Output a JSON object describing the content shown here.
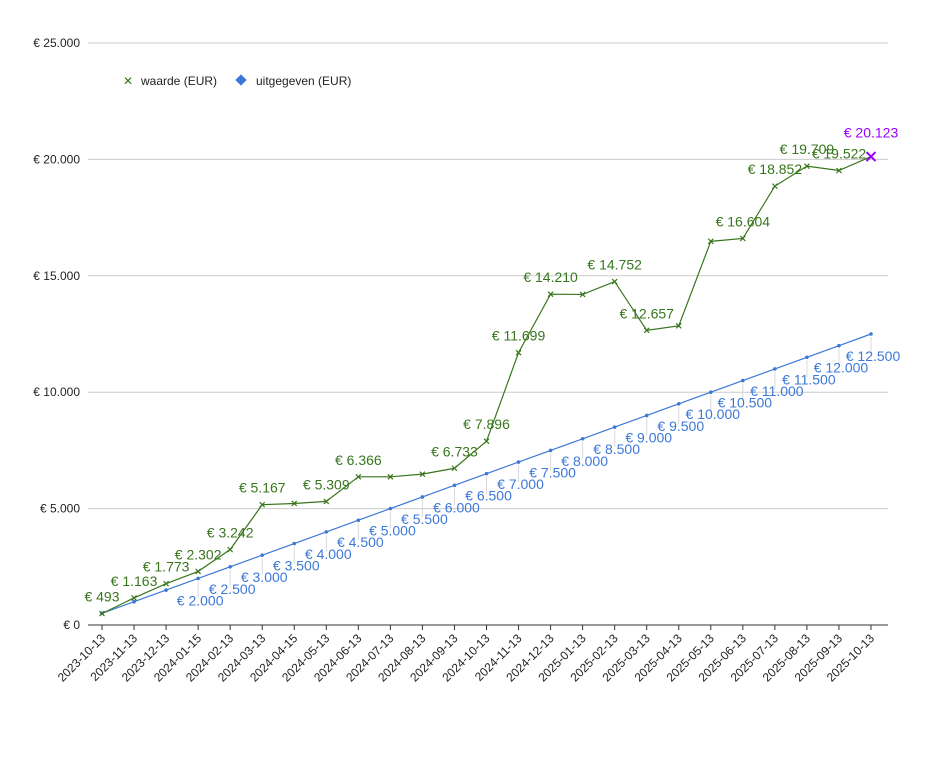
{
  "chart_data": {
    "type": "line",
    "title": "",
    "xlabel": "",
    "ylabel": "",
    "ylim": [
      0,
      25000
    ],
    "yticks": [
      "€ 0",
      "€ 5.000",
      "€ 10.000",
      "€ 15.000",
      "€ 20.000",
      "€ 25.000"
    ],
    "ytick_values": [
      0,
      5000,
      10000,
      15000,
      20000,
      25000
    ],
    "grid": true,
    "legend_position": "top-left",
    "categories": [
      "2023-10-13",
      "2023-11-13",
      "2023-12-13",
      "2024-01-15",
      "2024-02-13",
      "2024-03-13",
      "2024-04-15",
      "2024-05-13",
      "2024-06-13",
      "2024-07-13",
      "2024-08-13",
      "2024-09-13",
      "2024-10-13",
      "2024-11-13",
      "2024-12-13",
      "2025-01-13",
      "2025-02-13",
      "2025-03-13",
      "2025-04-13",
      "2025-05-13",
      "2025-06-13",
      "2025-07-13",
      "2025-08-13",
      "2025-09-13",
      "2025-10-13"
    ],
    "series": [
      {
        "name": "waarde (EUR)",
        "color": "#38761d",
        "marker": "x",
        "values": [
          493,
          1163,
          1773,
          2302,
          3242,
          5167,
          5220,
          5309,
          6366,
          6366,
          6480,
          6733,
          7896,
          11699,
          14210,
          14200,
          14752,
          12657,
          12850,
          16480,
          16604,
          18852,
          19709,
          19522,
          20123
        ],
        "labels": [
          "€ 493",
          "€ 1.163",
          "€ 1.773",
          "€ 2.302",
          "€ 3.242",
          "€ 5.167",
          "",
          "€ 5.309",
          "€ 6.366",
          "",
          "",
          "€ 6.733",
          "€ 7.896",
          "€ 11.699",
          "€ 14.210",
          "",
          "€ 14.752",
          "€ 12.657",
          "",
          "",
          "€ 16.604",
          "€ 18.852",
          "€ 19.709",
          "€ 19.522",
          "€ 20.123"
        ],
        "last_point_color": "#9900ff"
      },
      {
        "name": "uitgegeven (EUR)",
        "color": "#3c78d8",
        "marker": "diamond",
        "values": [
          500,
          1000,
          1500,
          2000,
          2500,
          3000,
          3500,
          4000,
          4500,
          5000,
          5500,
          6000,
          6500,
          7000,
          7500,
          8000,
          8500,
          9000,
          9500,
          10000,
          10500,
          11000,
          11500,
          12000,
          12500
        ],
        "labels": [
          "",
          "",
          "",
          "€ 2.000",
          "€ 2.500",
          "€ 3.000",
          "€ 3.500",
          "€ 4.000",
          "€ 4.500",
          "€ 5.000",
          "€ 5.500",
          "€ 6.000",
          "€ 6.500",
          "€ 7.000",
          "€ 7.500",
          "€ 8.000",
          "€ 8.500",
          "€ 9.000",
          "€ 9.500",
          "€ 10.000",
          "€ 10.500",
          "€ 11.000",
          "€ 11.500",
          "€ 12.000",
          "€ 12.500"
        ]
      }
    ]
  }
}
